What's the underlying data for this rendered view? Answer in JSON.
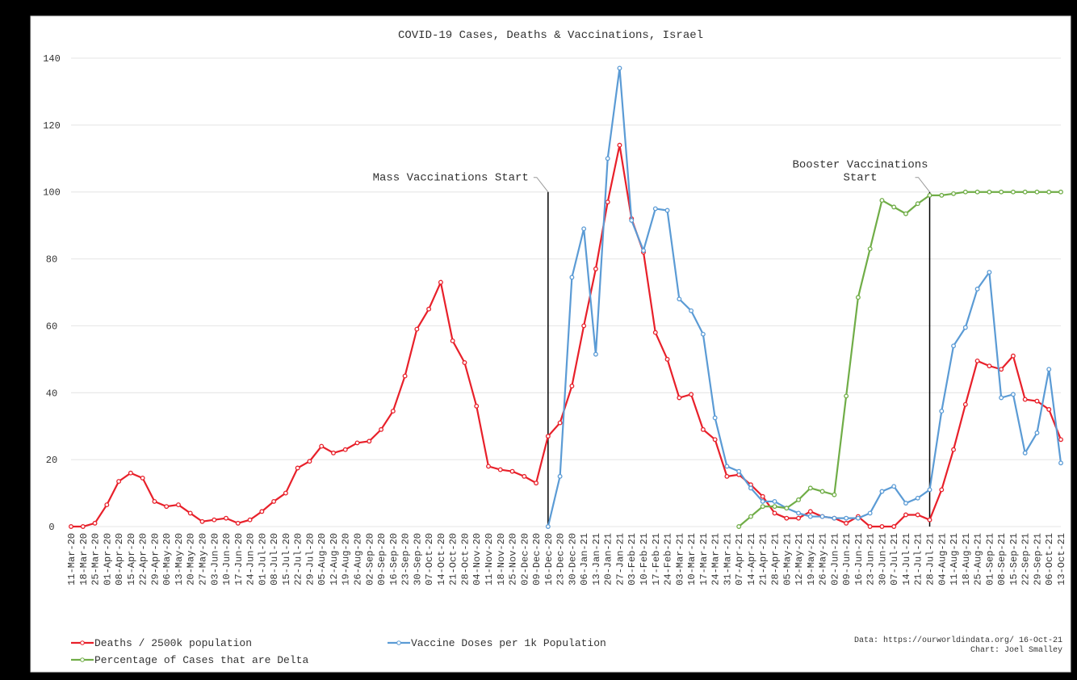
{
  "chart_data": {
    "type": "line",
    "title": "COVID-19 Cases, Deaths & Vaccinations, Israel",
    "categories": [
      "11-Mar-20",
      "18-Mar-20",
      "25-Mar-20",
      "01-Apr-20",
      "08-Apr-20",
      "15-Apr-20",
      "22-Apr-20",
      "29-Apr-20",
      "06-May-20",
      "13-May-20",
      "20-May-20",
      "27-May-20",
      "03-Jun-20",
      "10-Jun-20",
      "17-Jun-20",
      "24-Jun-20",
      "01-Jul-20",
      "08-Jul-20",
      "15-Jul-20",
      "22-Jul-20",
      "29-Jul-20",
      "05-Aug-20",
      "12-Aug-20",
      "19-Aug-20",
      "26-Aug-20",
      "02-Sep-20",
      "09-Sep-20",
      "16-Sep-20",
      "23-Sep-20",
      "30-Sep-20",
      "07-Oct-20",
      "14-Oct-20",
      "21-Oct-20",
      "28-Oct-20",
      "04-Nov-20",
      "11-Nov-20",
      "18-Nov-20",
      "25-Nov-20",
      "02-Dec-20",
      "09-Dec-20",
      "16-Dec-20",
      "23-Dec-20",
      "30-Dec-20",
      "06-Jan-21",
      "13-Jan-21",
      "20-Jan-21",
      "27-Jan-21",
      "03-Feb-21",
      "10-Feb-21",
      "17-Feb-21",
      "24-Feb-21",
      "03-Mar-21",
      "10-Mar-21",
      "17-Mar-21",
      "24-Mar-21",
      "31-Mar-21",
      "07-Apr-21",
      "14-Apr-21",
      "21-Apr-21",
      "28-Apr-21",
      "05-May-21",
      "12-May-21",
      "19-May-21",
      "26-May-21",
      "02-Jun-21",
      "09-Jun-21",
      "16-Jun-21",
      "23-Jun-21",
      "30-Jun-21",
      "07-Jul-21",
      "14-Jul-21",
      "21-Jul-21",
      "28-Jul-21",
      "04-Aug-21",
      "11-Aug-21",
      "18-Aug-21",
      "25-Aug-21",
      "01-Sep-21",
      "08-Sep-21",
      "15-Sep-21",
      "22-Sep-21",
      "29-Sep-21",
      "06-Oct-21",
      "13-Oct-21"
    ],
    "series": [
      {
        "name": "Deaths / 2500k population",
        "color": "#e8202a",
        "values": [
          0,
          0,
          1,
          6.5,
          13.5,
          16,
          14.5,
          7.5,
          6,
          6.5,
          4,
          1.5,
          2,
          2.5,
          1,
          2,
          4.5,
          7.5,
          10,
          17.5,
          19.5,
          24,
          22,
          23,
          25,
          25.5,
          29,
          34.5,
          45,
          59,
          65,
          73,
          55.5,
          49,
          36,
          18,
          17,
          16.5,
          15,
          13,
          27,
          31,
          42,
          60,
          77,
          97,
          114,
          92,
          82,
          58,
          50,
          38.5,
          39.5,
          29,
          26,
          15,
          15.5,
          12.5,
          9,
          4,
          2.5,
          2.5,
          4.5,
          3,
          2.5,
          1,
          3,
          0,
          0,
          0,
          3.5,
          3.5,
          2,
          11,
          23,
          36.5,
          49.5,
          48,
          47,
          51,
          38,
          37.5,
          35,
          26
        ]
      },
      {
        "name": "Vaccine Doses per 1k Population",
        "color": "#5b9bd5",
        "values": [
          null,
          null,
          null,
          null,
          null,
          null,
          null,
          null,
          null,
          null,
          null,
          null,
          null,
          null,
          null,
          null,
          null,
          null,
          null,
          null,
          null,
          null,
          null,
          null,
          null,
          null,
          null,
          null,
          null,
          null,
          null,
          null,
          null,
          null,
          null,
          null,
          null,
          null,
          null,
          null,
          0,
          15,
          74.5,
          89,
          51.5,
          110,
          137,
          91.5,
          82.5,
          95,
          94.5,
          68,
          64.5,
          57.5,
          32.5,
          18,
          16.5,
          11.5,
          7.5,
          7.5,
          5.5,
          4,
          3,
          3,
          2.5,
          2.5,
          2.5,
          4,
          10.5,
          12,
          7,
          8.5,
          11,
          34.5,
          54,
          59.5,
          71,
          76,
          38.5,
          39.5,
          22,
          28,
          47,
          19
        ]
      },
      {
        "name": "Percentage of Cases that are Delta",
        "color": "#70ad47",
        "values": [
          null,
          null,
          null,
          null,
          null,
          null,
          null,
          null,
          null,
          null,
          null,
          null,
          null,
          null,
          null,
          null,
          null,
          null,
          null,
          null,
          null,
          null,
          null,
          null,
          null,
          null,
          null,
          null,
          null,
          null,
          null,
          null,
          null,
          null,
          null,
          null,
          null,
          null,
          null,
          null,
          null,
          null,
          null,
          null,
          null,
          null,
          null,
          null,
          null,
          null,
          null,
          null,
          null,
          null,
          null,
          null,
          0,
          3,
          6,
          6,
          5.5,
          8,
          11.5,
          10.5,
          9.5,
          39,
          68.5,
          83,
          97.5,
          95.5,
          93.5,
          96.5,
          99,
          99,
          99.5,
          100,
          100,
          100,
          100,
          100,
          100,
          100,
          100,
          100
        ]
      }
    ],
    "ylim": [
      0,
      140
    ],
    "yticks": [
      0,
      20,
      40,
      60,
      80,
      100,
      120,
      140
    ],
    "grid": true,
    "annotations": [
      {
        "lines": [
          "Mass Vaccinations Start"
        ],
        "x": "16-Dec-20"
      },
      {
        "lines": [
          "Booster Vaccinations",
          "Start"
        ],
        "x": "28-Jul-21"
      }
    ],
    "source": [
      "Data: https://ourworldindata.org/ 16-Oct-21",
      "Chart: Joel Smalley"
    ]
  }
}
